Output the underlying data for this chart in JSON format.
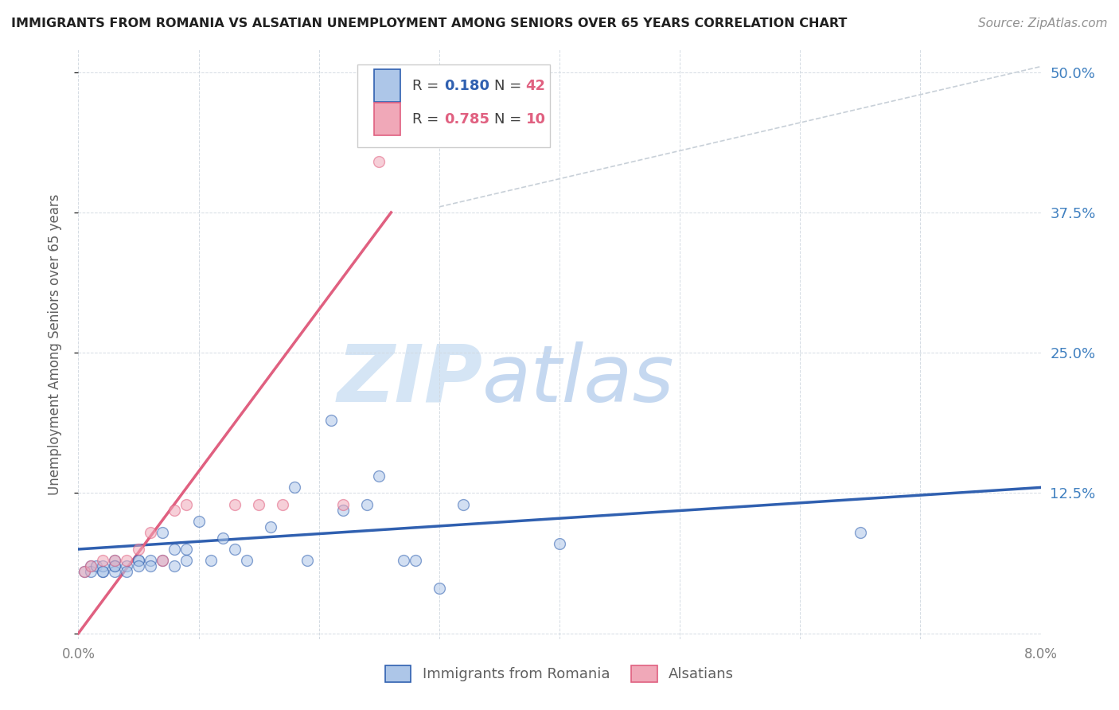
{
  "title": "IMMIGRANTS FROM ROMANIA VS ALSATIAN UNEMPLOYMENT AMONG SENIORS OVER 65 YEARS CORRELATION CHART",
  "source": "Source: ZipAtlas.com",
  "ylabel": "Unemployment Among Seniors over 65 years",
  "xlabel_blue": "Immigrants from Romania",
  "xlabel_pink": "Alsatians",
  "xmin": 0.0,
  "xmax": 0.08,
  "ymin": -0.005,
  "ymax": 0.52,
  "blue_scatter_x": [
    0.0005,
    0.001,
    0.001,
    0.0015,
    0.002,
    0.002,
    0.002,
    0.003,
    0.003,
    0.003,
    0.003,
    0.004,
    0.004,
    0.005,
    0.005,
    0.005,
    0.006,
    0.006,
    0.007,
    0.007,
    0.008,
    0.008,
    0.009,
    0.009,
    0.01,
    0.011,
    0.012,
    0.013,
    0.014,
    0.016,
    0.018,
    0.019,
    0.021,
    0.022,
    0.024,
    0.025,
    0.027,
    0.028,
    0.03,
    0.032,
    0.04,
    0.065
  ],
  "blue_scatter_y": [
    0.055,
    0.06,
    0.055,
    0.06,
    0.055,
    0.06,
    0.055,
    0.065,
    0.06,
    0.055,
    0.06,
    0.06,
    0.055,
    0.065,
    0.065,
    0.06,
    0.065,
    0.06,
    0.065,
    0.09,
    0.06,
    0.075,
    0.075,
    0.065,
    0.1,
    0.065,
    0.085,
    0.075,
    0.065,
    0.095,
    0.13,
    0.065,
    0.19,
    0.11,
    0.115,
    0.14,
    0.065,
    0.065,
    0.04,
    0.115,
    0.08,
    0.09
  ],
  "pink_scatter_x": [
    0.0005,
    0.001,
    0.002,
    0.003,
    0.004,
    0.005,
    0.006,
    0.007,
    0.008,
    0.009,
    0.013,
    0.015,
    0.017,
    0.022,
    0.025
  ],
  "pink_scatter_y": [
    0.055,
    0.06,
    0.065,
    0.065,
    0.065,
    0.075,
    0.09,
    0.065,
    0.11,
    0.115,
    0.115,
    0.115,
    0.115,
    0.115,
    0.42
  ],
  "blue_line_x": [
    0.0,
    0.08
  ],
  "blue_line_y": [
    0.075,
    0.13
  ],
  "pink_line_x": [
    0.0,
    0.026
  ],
  "pink_line_y": [
    0.0,
    0.375
  ],
  "diag_line_x": [
    0.03,
    0.08
  ],
  "diag_line_y": [
    0.38,
    0.505
  ],
  "blue_color": "#adc6e8",
  "pink_color": "#f0a8b8",
  "blue_line_color": "#3060b0",
  "pink_line_color": "#e06080",
  "diag_line_color": "#c8d0d8",
  "title_color": "#202020",
  "source_color": "#909090",
  "axis_label_color": "#606060",
  "right_axis_color": "#4080c0",
  "watermark_zip": "ZIP",
  "watermark_atlas": "atlas",
  "watermark_color_zip": "#d5e5f5",
  "watermark_color_atlas": "#c5d8f0",
  "scatter_size": 100,
  "scatter_alpha": 0.55,
  "scatter_linewidth": 1.0
}
